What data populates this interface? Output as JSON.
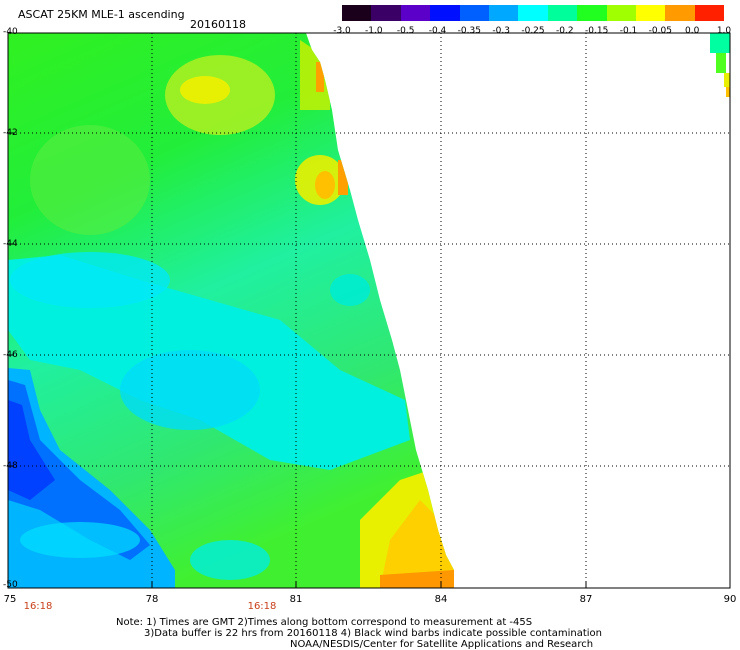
{
  "header": {
    "title": "ASCAT 25KM MLE-1 ascending",
    "date": "20160118"
  },
  "colorbar": {
    "labels": [
      "-3.0",
      "-1.0",
      "-0.5",
      "-0.4",
      "-0.35",
      "-0.3",
      "-0.25",
      "-0.2",
      "-0.15",
      "-0.1",
      "-0.05",
      "0.0",
      "1.0"
    ],
    "colors": [
      "#1a001a",
      "#3a0066",
      "#5a00c8",
      "#0010ff",
      "#0060ff",
      "#00a8ff",
      "#00ffff",
      "#00ff9a",
      "#20ff20",
      "#a0ff00",
      "#ffff00",
      "#ff9a00",
      "#ff2000"
    ]
  },
  "map": {
    "lat_labels": [
      "-40",
      "-42",
      "-44",
      "-46",
      "-48",
      "-50"
    ],
    "lon_labels": [
      "75",
      "78",
      "81",
      "84",
      "87",
      "90"
    ],
    "lat_range": [
      -50,
      -40
    ],
    "lon_range": [
      75,
      90
    ],
    "time_labels": [
      {
        "lon": 75.6,
        "text": "16:18"
      },
      {
        "lon": 80.3,
        "text": "16:18"
      }
    ]
  },
  "notes": {
    "line1": "Note: 1) Times are GMT 2)Times along bottom correspond to measurement at -45S",
    "line2": "3)Data buffer is 22 hrs from 20160118 4) Black wind barbs indicate possible contamination",
    "line3": "NOAA/NESDIS/Center for Satellite Applications and Research"
  }
}
